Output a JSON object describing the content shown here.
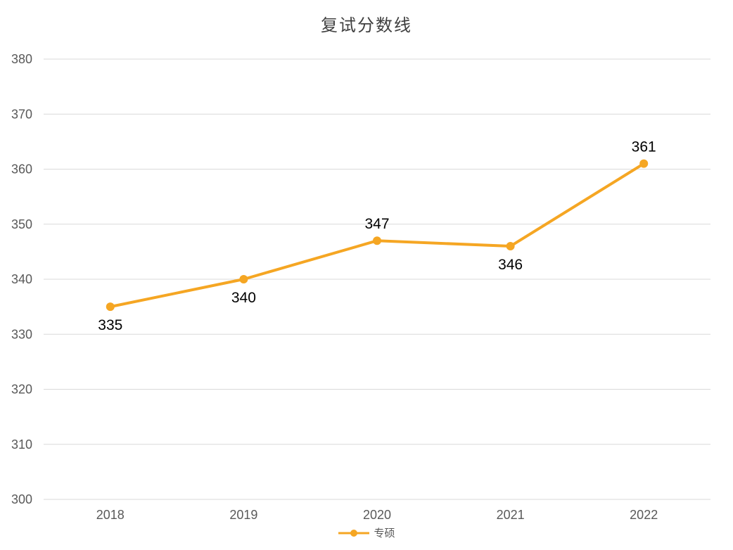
{
  "chart_data": {
    "type": "line",
    "title": "复试分数线",
    "categories": [
      "2018",
      "2019",
      "2020",
      "2021",
      "2022"
    ],
    "series": [
      {
        "name": "专硕",
        "values": [
          335,
          340,
          347,
          346,
          361
        ],
        "color": "#F5A623",
        "label_positions": [
          "below",
          "below",
          "above",
          "below",
          "above"
        ]
      }
    ],
    "ylim": [
      300,
      380
    ],
    "y_ticks": [
      300,
      310,
      320,
      330,
      340,
      350,
      360,
      370,
      380
    ],
    "grid": true,
    "legend_position": "bottom"
  },
  "colors": {
    "grid": "#d9d9d9",
    "axis_text": "#595959",
    "title_text": "#3f3f3f",
    "data_label": "#000000",
    "background": "#ffffff"
  }
}
